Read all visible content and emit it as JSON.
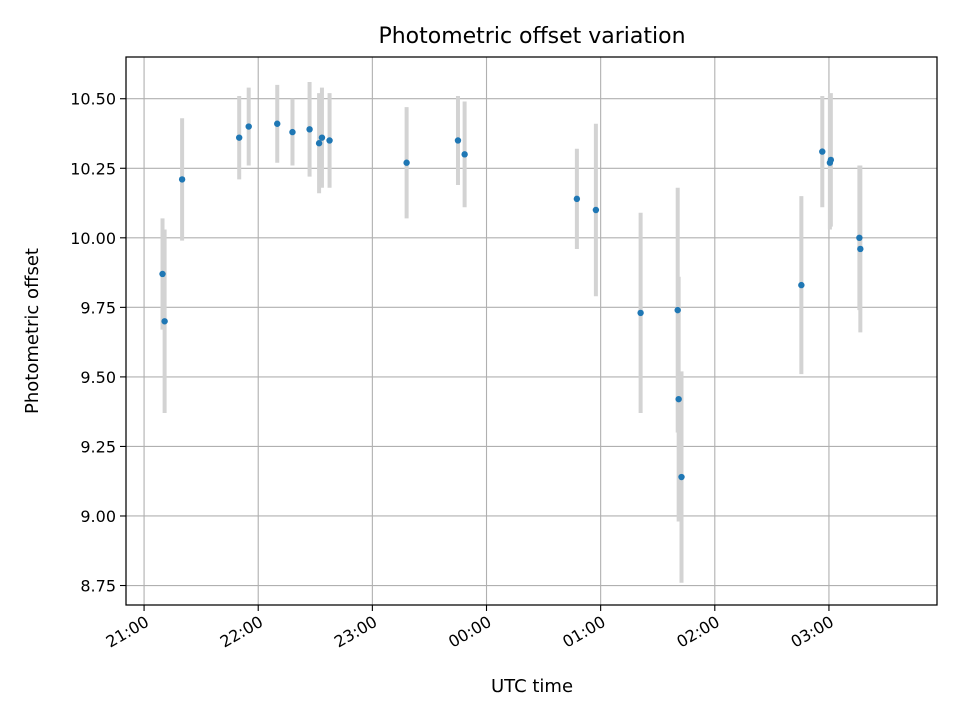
{
  "chart_data": {
    "type": "scatter",
    "title": "Photometric offset variation",
    "xlabel": "UTC time",
    "ylabel": "Photometric offset",
    "grid": true,
    "legend": "none",
    "colors": {
      "point": "#1f77b4",
      "errorbar": "#d3d3d3",
      "grid": "#b0b0b0",
      "axes": "#000000"
    },
    "x_ticks": [
      "21:00",
      "22:00",
      "23:00",
      "00:00",
      "01:00",
      "02:00",
      "03:00"
    ],
    "x_tick_minutes": [
      1260,
      1320,
      1380,
      1440,
      1500,
      1560,
      1620
    ],
    "xlim_minutes": [
      1250.5,
      1676.8
    ],
    "y_ticks": [
      "8.75",
      "9.00",
      "9.25",
      "9.50",
      "9.75",
      "10.00",
      "10.25",
      "10.50"
    ],
    "ylim": [
      8.68,
      10.65
    ],
    "series": [
      {
        "points": [
          {
            "t": 1269.7,
            "y": 9.87,
            "err": 0.2
          },
          {
            "t": 1270.8,
            "y": 9.7,
            "err": 0.33
          },
          {
            "t": 1280.0,
            "y": 10.21,
            "err": 0.22
          },
          {
            "t": 1310.0,
            "y": 10.36,
            "err": 0.15
          },
          {
            "t": 1315.0,
            "y": 10.4,
            "err": 0.14
          },
          {
            "t": 1330.0,
            "y": 10.41,
            "err": 0.14
          },
          {
            "t": 1338.0,
            "y": 10.38,
            "err": 0.12
          },
          {
            "t": 1347.0,
            "y": 10.39,
            "err": 0.17
          },
          {
            "t": 1352.0,
            "y": 10.34,
            "err": 0.18
          },
          {
            "t": 1353.5,
            "y": 10.36,
            "err": 0.18
          },
          {
            "t": 1357.5,
            "y": 10.35,
            "err": 0.17
          },
          {
            "t": 1398.0,
            "y": 10.27,
            "err": 0.2
          },
          {
            "t": 1425.0,
            "y": 10.35,
            "err": 0.16
          },
          {
            "t": 1428.5,
            "y": 10.3,
            "err": 0.19
          },
          {
            "t": 1487.5,
            "y": 10.14,
            "err": 0.18
          },
          {
            "t": 1497.5,
            "y": 10.1,
            "err": 0.31
          },
          {
            "t": 1521.0,
            "y": 9.73,
            "err": 0.36
          },
          {
            "t": 1540.5,
            "y": 9.74,
            "err": 0.44
          },
          {
            "t": 1541.0,
            "y": 9.42,
            "err": 0.44
          },
          {
            "t": 1542.5,
            "y": 9.14,
            "err": 0.38
          },
          {
            "t": 1605.5,
            "y": 9.83,
            "err": 0.32
          },
          {
            "t": 1616.5,
            "y": 10.31,
            "err": 0.2
          },
          {
            "t": 1620.5,
            "y": 10.27,
            "err": 0.24
          },
          {
            "t": 1621.0,
            "y": 10.28,
            "err": 0.24
          },
          {
            "t": 1636.0,
            "y": 10.0,
            "err": 0.26
          },
          {
            "t": 1636.5,
            "y": 9.96,
            "err": 0.3
          }
        ]
      }
    ]
  }
}
